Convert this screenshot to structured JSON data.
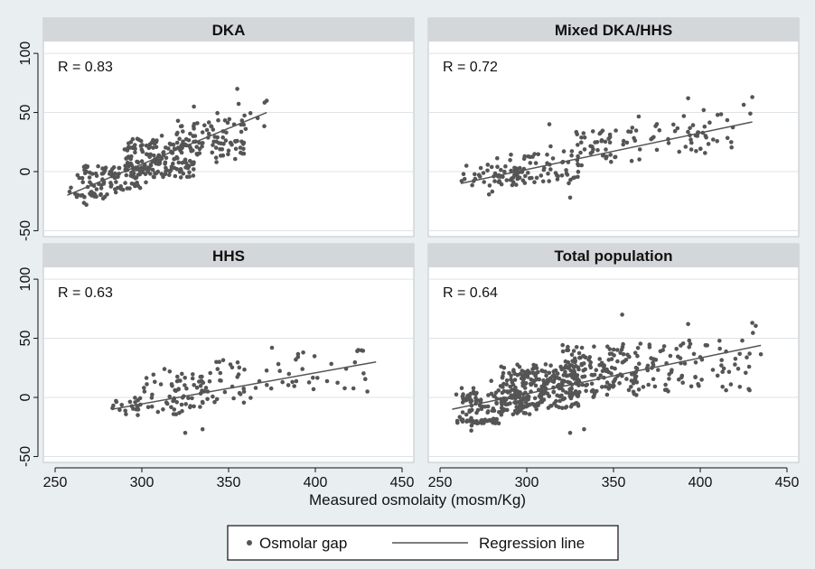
{
  "colors": {
    "background": "#e9eef1",
    "panel": "#ffffff",
    "header": "#d4d7da",
    "grid": "#dfe3e6",
    "point": "#555555",
    "line": "#555555"
  },
  "legend": {
    "point_label": "Osmolar gap",
    "line_label": "Regression line"
  },
  "chart_data": {
    "type": "scatter",
    "xlabel": "Measured osmolaity (mosm/Kg)",
    "xlim": [
      250,
      450
    ],
    "ylim": [
      -55,
      110
    ],
    "x_ticks": [
      250,
      300,
      350,
      400,
      450
    ],
    "y_ticks": [
      -50,
      0,
      50,
      100
    ],
    "panels": [
      {
        "title": "DKA",
        "r_label": "R = 0.83",
        "x_range": [
          257,
          372
        ],
        "regression": {
          "x": [
            257,
            372
          ],
          "y": [
            -20,
            50
          ]
        },
        "clusters": [
          {
            "x": [
              260,
              280
            ],
            "y": [
              -22,
              -17
            ],
            "n": 25
          },
          {
            "x": [
              262,
              300
            ],
            "y": [
              -15,
              5
            ],
            "n": 70
          },
          {
            "x": [
              290,
              330
            ],
            "y": [
              -5,
              28
            ],
            "n": 160
          },
          {
            "x": [
              320,
              360
            ],
            "y": [
              10,
              45
            ],
            "n": 70
          }
        ],
        "extras": {
          "x": [
            355,
            372,
            268,
            330,
            343
          ],
          "y": [
            70,
            60,
            -28,
            55,
            8
          ]
        },
        "n_scatter": 55,
        "scatter_slope": 0.608,
        "scatter_intercept": -176,
        "scatter_noise": 18
      },
      {
        "title": "Mixed DKA/HHS",
        "r_label": "R = 0.72",
        "x_range": [
          262,
          430
        ],
        "regression": {
          "x": [
            262,
            430
          ],
          "y": [
            -10,
            42
          ]
        },
        "clusters": [
          {
            "x": [
              262,
              295
            ],
            "y": [
              -12,
              5
            ],
            "n": 40
          },
          {
            "x": [
              290,
              330
            ],
            "y": [
              -10,
              15
            ],
            "n": 55
          },
          {
            "x": [
              325,
              365
            ],
            "y": [
              5,
              35
            ],
            "n": 45
          },
          {
            "x": [
              360,
              420
            ],
            "y": [
              15,
              48
            ],
            "n": 35
          }
        ],
        "extras": {
          "x": [
            393,
            430,
            410,
            313,
            402,
            325
          ],
          "y": [
            62,
            63,
            48,
            40,
            52,
            -22
          ]
        },
        "n_scatter": 40,
        "scatter_slope": 0.31,
        "scatter_intercept": -91,
        "scatter_noise": 16
      },
      {
        "title": "HHS",
        "r_label": "R = 0.63",
        "x_range": [
          283,
          435
        ],
        "regression": {
          "x": [
            283,
            435
          ],
          "y": [
            -10,
            30
          ]
        },
        "clusters": [
          {
            "x": [
              283,
              300
            ],
            "y": [
              -15,
              0
            ],
            "n": 20
          },
          {
            "x": [
              300,
              335
            ],
            "y": [
              -15,
              22
            ],
            "n": 55
          },
          {
            "x": [
              330,
              360
            ],
            "y": [
              -5,
              32
            ],
            "n": 35
          },
          {
            "x": [
              365,
              435
            ],
            "y": [
              5,
              40
            ],
            "n": 25
          }
        ],
        "extras": {
          "x": [
            325,
            335,
            375,
            393,
            313,
            430
          ],
          "y": [
            -30,
            -27,
            42,
            38,
            24,
            5
          ]
        },
        "n_scatter": 20,
        "scatter_slope": 0.263,
        "scatter_intercept": -84,
        "scatter_noise": 15
      },
      {
        "title": "Total population",
        "r_label": "R = 0.64",
        "x_range": [
          257,
          435
        ],
        "regression": {
          "x": [
            257,
            435
          ],
          "y": [
            -10,
            44
          ]
        },
        "clusters": [
          {
            "x": [
              260,
              285
            ],
            "y": [
              -22,
              -17
            ],
            "n": 35
          },
          {
            "x": [
              262,
              300
            ],
            "y": [
              -15,
              5
            ],
            "n": 90
          },
          {
            "x": [
              285,
              330
            ],
            "y": [
              -10,
              28
            ],
            "n": 230
          },
          {
            "x": [
              320,
              365
            ],
            "y": [
              0,
              45
            ],
            "n": 120
          },
          {
            "x": [
              360,
              435
            ],
            "y": [
              5,
              48
            ],
            "n": 55
          }
        ],
        "extras": {
          "x": [
            355,
            393,
            430,
            268,
            325,
            333
          ],
          "y": [
            70,
            62,
            63,
            -28,
            -30,
            -27
          ]
        },
        "n_scatter": 90,
        "scatter_slope": 0.303,
        "scatter_intercept": -88,
        "scatter_noise": 18
      }
    ]
  }
}
